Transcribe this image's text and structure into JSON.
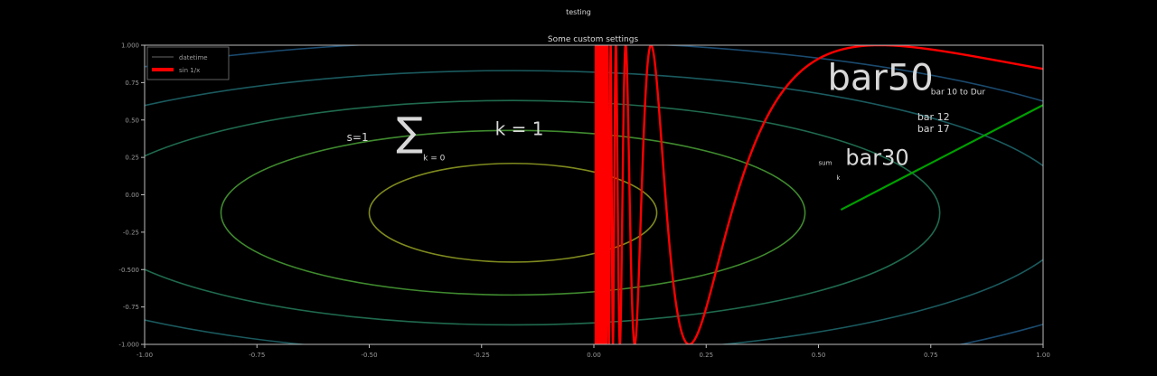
{
  "chart_data": {
    "type": "line",
    "suptitle": "testing",
    "title": "Some custom settings",
    "x_ticks": [
      "-1.00",
      "-0.75",
      "-0.50",
      "-0.25",
      "0.00",
      "0.25",
      "0.50",
      "0.75",
      "1.00"
    ],
    "y_ticks": [
      "1.000",
      "0.75",
      "0.50",
      "0.25",
      "0.00",
      "-0.25",
      "-0.500",
      "-0.75",
      "-1.000"
    ],
    "xlim": [
      -1.0,
      1.0
    ],
    "ylim": [
      -1.0,
      1.0
    ],
    "grid": false,
    "legend": {
      "location": "upper left",
      "entries": [
        {
          "label": "datetime",
          "color": "#000000"
        },
        {
          "label": "sin 1/x",
          "color": "#ff0000"
        }
      ]
    },
    "series": [
      {
        "name": "sin 1/x",
        "color": "#ff0000",
        "function": "sin(1/x)",
        "x_range": [
          0.0,
          1.0
        ]
      },
      {
        "color": "#00a000",
        "x": [
          0.55,
          1.0
        ],
        "y": [
          -0.1,
          0.6
        ]
      }
    ],
    "contours": {
      "colormap": "viridis",
      "levels": [
        {
          "rx": 0.32,
          "ry": 0.33,
          "color": "#7f8a1e"
        },
        {
          "rx": 0.65,
          "ry": 0.55,
          "color": "#3f8a2e"
        },
        {
          "rx": 0.95,
          "ry": 0.75,
          "color": "#1f6a4e"
        },
        {
          "rx": 1.25,
          "ry": 0.95,
          "color": "#1a5a5e"
        },
        {
          "rx": 1.55,
          "ry": 1.15,
          "color": "#1a4a6e"
        }
      ]
    },
    "annotations": [
      {
        "text": "bar50",
        "x": 0.52,
        "y": 0.7
      },
      {
        "text": "bar30",
        "x": 0.56,
        "y": 0.2
      },
      {
        "text": "bar 12",
        "x": 0.72,
        "y": 0.5
      },
      {
        "text": "bar 17",
        "x": 0.72,
        "y": 0.42
      },
      {
        "text": "bar 10 to Dur",
        "x": 0.75,
        "y": 0.67
      },
      {
        "text": "s=1",
        "x": -0.55,
        "y": 0.36
      },
      {
        "text": "k = 1",
        "x": -0.22,
        "y": 0.4
      },
      {
        "text": "k = 0",
        "x": -0.38,
        "y": 0.23
      },
      {
        "text": "sum",
        "x": 0.5,
        "y": 0.2
      },
      {
        "text": "k",
        "x": 0.54,
        "y": 0.1
      }
    ],
    "sum_symbol": "∑"
  }
}
